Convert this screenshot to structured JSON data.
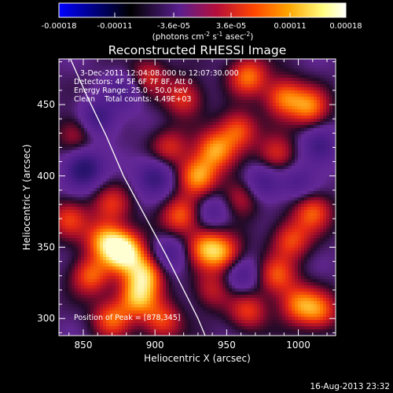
{
  "chart_data": [
    {
      "type": "colorbar",
      "tick_labels": [
        "-0.00018",
        "-0.00011",
        "-3.6e-05",
        "3.6e-05",
        "0.00011",
        "0.00018"
      ],
      "ticks": [
        -0.00018,
        -0.00011,
        -3.6e-05,
        3.6e-05,
        0.00011,
        0.00018
      ],
      "range": [
        -0.00018,
        0.00018
      ],
      "unit_label": {
        "lead": "(photons cm",
        "exp1": "-2",
        "mid1": " s",
        "exp2": "-1",
        "mid2": " asec",
        "exp3": "-2",
        "tail": ")"
      },
      "colors": [
        "#0000ff",
        "#000000",
        "#5a1f8f",
        "#b50e3a",
        "#ff4500",
        "#ffa500",
        "#ffff80",
        "#ffffff"
      ]
    },
    {
      "type": "heatmap",
      "title": "Reconstructed RHESSI Image",
      "xlabel": "Heliocentric X (arcsec)",
      "ylabel": "Heliocentric Y (arcsec)",
      "xlim": [
        833,
        1026
      ],
      "ylim": [
        288,
        482
      ],
      "xticks": [
        850,
        900,
        950,
        1000
      ],
      "yticks": [
        300,
        350,
        400,
        450
      ],
      "annotations": [
        "3-Dec-2011 12:04:08.000 to 12:07:30.000",
        "Detectors: 4F 5F 6F 7F 8F, Att 0",
        "Energy Range: 25.0 - 50.0 keV",
        "Clean    Total counts: 4.49E+03"
      ],
      "peak_text": "Position of Peak = [878,345]",
      "peak": [
        878,
        345
      ],
      "limb_arc": [
        [
          841,
          482
        ],
        [
          853,
          455
        ],
        [
          866,
          428
        ],
        [
          878,
          400
        ],
        [
          893,
          372
        ],
        [
          908,
          344
        ],
        [
          920,
          320
        ],
        [
          930,
          300
        ],
        [
          935,
          288
        ]
      ],
      "sources": [
        {
          "x": 878,
          "y": 347,
          "amp": 1.0
        },
        {
          "x": 893,
          "y": 332,
          "amp": 0.75
        },
        {
          "x": 865,
          "y": 355,
          "amp": 0.65
        },
        {
          "x": 888,
          "y": 315,
          "amp": 0.7
        },
        {
          "x": 855,
          "y": 330,
          "amp": 0.55
        },
        {
          "x": 870,
          "y": 300,
          "amp": 0.55
        },
        {
          "x": 905,
          "y": 298,
          "amp": 0.5
        },
        {
          "x": 935,
          "y": 350,
          "amp": 0.6
        },
        {
          "x": 948,
          "y": 345,
          "amp": 0.55
        },
        {
          "x": 918,
          "y": 372,
          "amp": 0.55
        },
        {
          "x": 930,
          "y": 400,
          "amp": 0.7
        },
        {
          "x": 942,
          "y": 418,
          "amp": 0.65
        },
        {
          "x": 958,
          "y": 432,
          "amp": 0.55
        },
        {
          "x": 965,
          "y": 470,
          "amp": 0.6
        },
        {
          "x": 990,
          "y": 455,
          "amp": 0.6
        },
        {
          "x": 1008,
          "y": 448,
          "amp": 0.6
        },
        {
          "x": 985,
          "y": 415,
          "amp": 0.45
        },
        {
          "x": 1010,
          "y": 375,
          "amp": 0.55
        },
        {
          "x": 995,
          "y": 355,
          "amp": 0.5
        },
        {
          "x": 985,
          "y": 330,
          "amp": 0.5
        },
        {
          "x": 1000,
          "y": 310,
          "amp": 0.55
        },
        {
          "x": 1015,
          "y": 305,
          "amp": 0.5
        },
        {
          "x": 965,
          "y": 305,
          "amp": 0.45
        },
        {
          "x": 940,
          "y": 320,
          "amp": 0.35
        },
        {
          "x": 920,
          "y": 455,
          "amp": 0.45
        },
        {
          "x": 895,
          "y": 470,
          "amp": 0.4
        },
        {
          "x": 840,
          "y": 370,
          "amp": 0.45
        },
        {
          "x": 845,
          "y": 430,
          "amp": 0.35
        },
        {
          "x": 960,
          "y": 385,
          "amp": 0.4
        },
        {
          "x": 910,
          "y": 420,
          "amp": 0.4
        },
        {
          "x": 870,
          "y": 380,
          "amp": 0.4
        }
      ],
      "negatives": [
        {
          "x": 850,
          "y": 405,
          "amp": -0.6
        },
        {
          "x": 860,
          "y": 440,
          "amp": -0.45
        },
        {
          "x": 900,
          "y": 400,
          "amp": -0.45
        },
        {
          "x": 910,
          "y": 345,
          "amp": -0.35
        },
        {
          "x": 975,
          "y": 395,
          "amp": -0.4
        },
        {
          "x": 960,
          "y": 330,
          "amp": -0.35
        },
        {
          "x": 1015,
          "y": 420,
          "amp": -0.4
        },
        {
          "x": 880,
          "y": 460,
          "amp": -0.3
        },
        {
          "x": 940,
          "y": 375,
          "amp": -0.3
        },
        {
          "x": 1000,
          "y": 395,
          "amp": -0.3
        }
      ]
    }
  ],
  "footer": {
    "timestamp": "16-Aug-2013 23:32"
  }
}
